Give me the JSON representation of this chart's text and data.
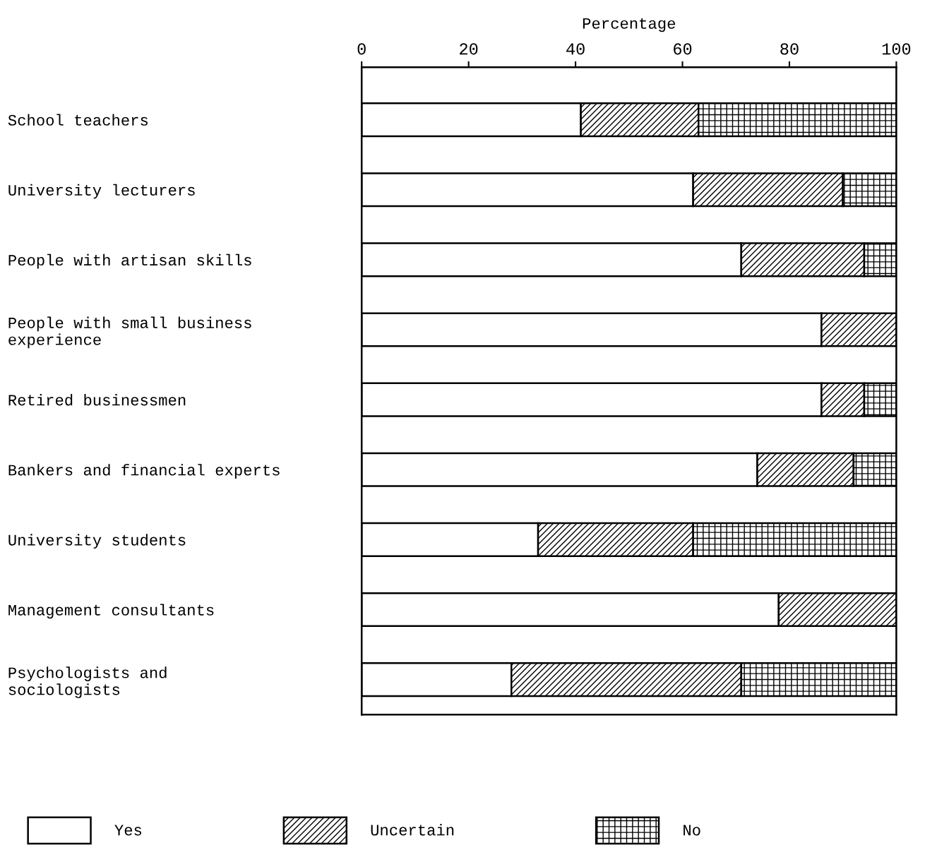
{
  "chart_data": {
    "type": "bar",
    "orientation": "horizontal",
    "stacked": true,
    "xlabel": "Percentage",
    "categories": [
      "School teachers",
      "University lecturers",
      "People with artisan skills",
      "People with small business\nexperience",
      "Retired businessmen",
      "Bankers and financial experts",
      "University students",
      "Management consultants",
      "Psychologists and\nsociologists"
    ],
    "series": [
      {
        "name": "Yes",
        "color": "#ffffff",
        "values": [
          41,
          62,
          71,
          86,
          86,
          74,
          33,
          78,
          28
        ]
      },
      {
        "name": "Uncertain",
        "color": "#000000",
        "values": [
          22,
          28,
          23,
          14,
          8,
          18,
          29,
          22,
          43
        ]
      },
      {
        "name": "No",
        "color": "#000000",
        "values": [
          37,
          10,
          6,
          0,
          6,
          8,
          38,
          0,
          29
        ]
      }
    ],
    "xlim": [
      0,
      100
    ],
    "xticks": [
      0,
      20,
      40,
      60,
      80,
      100
    ],
    "grid": false,
    "legend": "bottom"
  }
}
